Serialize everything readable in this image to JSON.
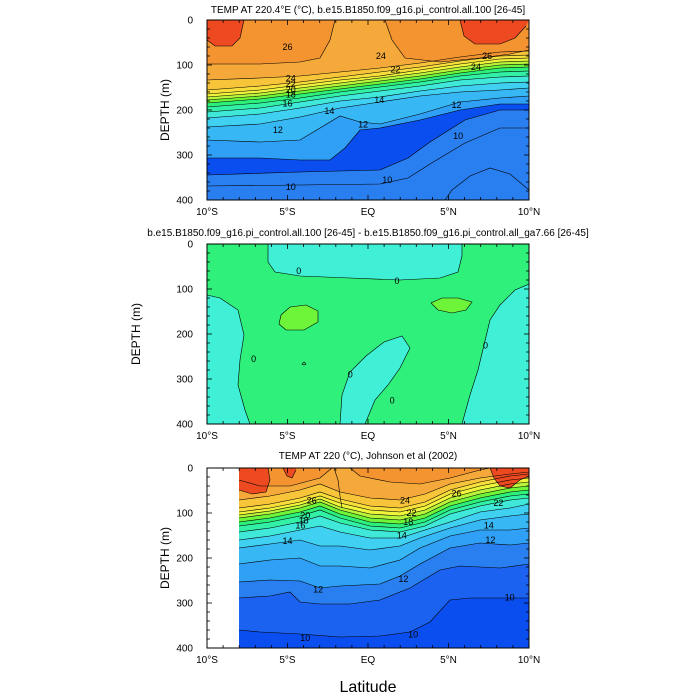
{
  "figure": {
    "xlabel": "Latitude"
  },
  "chart_data": [
    {
      "type": "heatmap",
      "title": "TEMP AT 220.4°E (°C), b.e15.B1850.f09_g16.pi_control.all.100 [26-45]",
      "ylabel": "DEPTH (m)",
      "xlim": [
        -10,
        10
      ],
      "ylim": [
        400,
        0
      ],
      "x_tick_labels": [
        "10°S",
        "5°S",
        "EQ",
        "5°N",
        "10°N"
      ],
      "y_tick_labels": [
        "0",
        "100",
        "200",
        "300",
        "400"
      ],
      "contour_levels": [
        10,
        11,
        12,
        13,
        14,
        15,
        16,
        17,
        18,
        19,
        20,
        21,
        22,
        23,
        24,
        25,
        26,
        27
      ],
      "contour_labels": [
        {
          "text": "26",
          "x": -5.0,
          "y": 60
        },
        {
          "text": "24",
          "x": 0.8,
          "y": 80
        },
        {
          "text": "26",
          "x": 7.4,
          "y": 80
        },
        {
          "text": "24",
          "x": 6.7,
          "y": 104
        },
        {
          "text": "22",
          "x": 1.7,
          "y": 110
        },
        {
          "text": "24",
          "x": -4.8,
          "y": 130
        },
        {
          "text": "22",
          "x": -4.8,
          "y": 142
        },
        {
          "text": "20",
          "x": -4.8,
          "y": 155
        },
        {
          "text": "18",
          "x": -4.8,
          "y": 166
        },
        {
          "text": "16",
          "x": -5.0,
          "y": 186
        },
        {
          "text": "14",
          "x": -2.4,
          "y": 202
        },
        {
          "text": "14",
          "x": 0.7,
          "y": 178
        },
        {
          "text": "12",
          "x": 5.5,
          "y": 189
        },
        {
          "text": "12",
          "x": -5.6,
          "y": 244
        },
        {
          "text": "12",
          "x": -0.3,
          "y": 232
        },
        {
          "text": "10",
          "x": 5.6,
          "y": 258
        },
        {
          "text": "10",
          "x": -4.8,
          "y": 371
        },
        {
          "text": "10",
          "x": 1.2,
          "y": 356
        }
      ]
    },
    {
      "type": "heatmap",
      "title": "b.e15.B1850.f09_g16.pi_control.all.100 [26-45] - b.e15.B1850.f09_g16.pi_control.all_ga7.66 [26-45]",
      "ylabel": "DEPTH (m)",
      "xlim": [
        -10,
        10
      ],
      "ylim": [
        400,
        0
      ],
      "x_tick_labels": [
        "10°S",
        "5°S",
        "EQ",
        "5°N",
        "10°N"
      ],
      "y_tick_labels": [
        "0",
        "100",
        "200",
        "300",
        "400"
      ],
      "contour_levels": [
        -0.5,
        0,
        0.5
      ],
      "contour_labels": [
        {
          "text": "0",
          "x": -7.1,
          "y": 255
        },
        {
          "text": "0",
          "x": -4.3,
          "y": 60
        },
        {
          "text": "0",
          "x": 1.8,
          "y": 82
        },
        {
          "text": "0",
          "x": 7.3,
          "y": 225
        },
        {
          "text": "0",
          "x": -1.1,
          "y": 290
        },
        {
          "text": "0",
          "x": 1.5,
          "y": 348
        }
      ]
    },
    {
      "type": "heatmap",
      "title": "TEMP AT 220 (°C), Johnson et al (2002)",
      "ylabel": "DEPTH (m)",
      "xlim": [
        -10,
        10
      ],
      "ylim": [
        400,
        0
      ],
      "x_tick_labels": [
        "10°S",
        "5°S",
        "EQ",
        "5°N",
        "10°N"
      ],
      "y_tick_labels": [
        "0",
        "100",
        "200",
        "300",
        "400"
      ],
      "data_x_range": [
        -8,
        10
      ],
      "contour_levels": [
        10,
        11,
        12,
        13,
        14,
        15,
        16,
        17,
        18,
        19,
        20,
        21,
        22,
        23,
        24,
        25,
        26,
        27
      ],
      "contour_labels": [
        {
          "text": "26",
          "x": -3.5,
          "y": 72
        },
        {
          "text": "24",
          "x": 2.3,
          "y": 72
        },
        {
          "text": "26",
          "x": 5.5,
          "y": 57
        },
        {
          "text": "22",
          "x": 8.1,
          "y": 78
        },
        {
          "text": "20",
          "x": -3.9,
          "y": 106
        },
        {
          "text": "18",
          "x": -4.0,
          "y": 117
        },
        {
          "text": "16",
          "x": -4.2,
          "y": 128
        },
        {
          "text": "22",
          "x": 2.7,
          "y": 100
        },
        {
          "text": "18",
          "x": 2.5,
          "y": 120
        },
        {
          "text": "14",
          "x": -5.0,
          "y": 162
        },
        {
          "text": "14",
          "x": 2.1,
          "y": 150
        },
        {
          "text": "14",
          "x": 7.5,
          "y": 128
        },
        {
          "text": "12",
          "x": 7.6,
          "y": 160
        },
        {
          "text": "12",
          "x": 2.2,
          "y": 247
        },
        {
          "text": "12",
          "x": -3.1,
          "y": 270
        },
        {
          "text": "10",
          "x": 8.8,
          "y": 288
        },
        {
          "text": "10",
          "x": -3.9,
          "y": 378
        },
        {
          "text": "10",
          "x": 2.8,
          "y": 370
        }
      ]
    }
  ]
}
